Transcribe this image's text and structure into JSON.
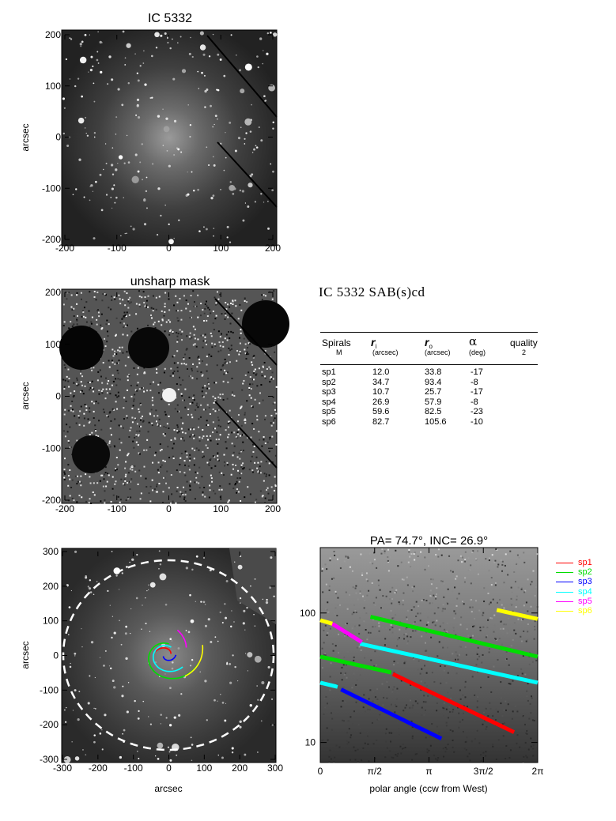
{
  "panels": {
    "top": {
      "title": "IC 5332",
      "ylabel": "arcsec",
      "xticks": [
        "-200",
        "-100",
        "0",
        "100",
        "200"
      ],
      "yticks": [
        "200",
        "100",
        "0",
        "-100",
        "-200"
      ]
    },
    "middle": {
      "title": "unsharp mask",
      "ylabel": "arcsec",
      "xticks": [
        "-200",
        "-100",
        "0",
        "100",
        "200"
      ],
      "yticks": [
        "200",
        "100",
        "0",
        "-100",
        "-200"
      ]
    },
    "bottom_left": {
      "xlabel": "arcsec",
      "ylabel": "arcsec",
      "xticks": [
        "-300",
        "-200",
        "-100",
        "0",
        "100",
        "200",
        "300"
      ],
      "yticks": [
        "300",
        "200",
        "100",
        "0",
        "-100",
        "-200",
        "-300"
      ]
    },
    "bottom_right": {
      "title": "PA= 74.7°, INC= 26.9°",
      "xlabel": "polar angle (ccw from West)",
      "xticks": [
        "0",
        "π/2",
        "π",
        "3π/2",
        "2π"
      ],
      "yticks": [
        "100",
        "10"
      ]
    }
  },
  "galaxy_title": "IC 5332  SAB(s)cd",
  "table": {
    "headers": {
      "spirals": "Spirals",
      "spirals_sub": "M",
      "ri": "r",
      "ri_sub": "i",
      "ri_unit": "(arcsec)",
      "ro": "r",
      "ro_sub": "o",
      "ro_unit": "(arcsec)",
      "alpha": "α",
      "alpha_unit": "(deg)",
      "quality": "quality",
      "quality_val": "2"
    },
    "rows": [
      {
        "name": "sp1",
        "ri": "12.0",
        "ro": "33.8",
        "alpha": "-17"
      },
      {
        "name": "sp2",
        "ri": "34.7",
        "ro": "93.4",
        "alpha": "-8"
      },
      {
        "name": "sp3",
        "ri": "10.7",
        "ro": "25.7",
        "alpha": "-17"
      },
      {
        "name": "sp4",
        "ri": "26.9",
        "ro": "57.9",
        "alpha": "-8"
      },
      {
        "name": "sp5",
        "ri": "59.6",
        "ro": "82.5",
        "alpha": "-23"
      },
      {
        "name": "sp6",
        "ri": "82.7",
        "ro": "105.6",
        "alpha": "-10"
      }
    ]
  },
  "legend": [
    {
      "label": "sp1",
      "color": "#ff0000"
    },
    {
      "label": "sp2",
      "color": "#00dd00"
    },
    {
      "label": "sp3",
      "color": "#0000ff"
    },
    {
      "label": "sp4",
      "color": "#00ffff"
    },
    {
      "label": "sp5",
      "color": "#ff00ff"
    },
    {
      "label": "sp6",
      "color": "#ffff00"
    }
  ],
  "chart_data": {
    "type": "line",
    "x_range": [
      0,
      6.2832
    ],
    "y_scale": "log",
    "y_range": [
      7,
      320
    ],
    "series": [
      {
        "name": "sp1",
        "color": "#ff0000",
        "x": [
          2.1,
          5.6
        ],
        "y": [
          33.8,
          12.0
        ]
      },
      {
        "name": "sp2",
        "color": "#00dd00",
        "x": [
          0.0,
          2.05
        ],
        "y": [
          46,
          34.7
        ]
      },
      {
        "name": "sp2",
        "color": "#00dd00",
        "x": [
          1.45,
          6.28
        ],
        "y": [
          93.4,
          46
        ]
      },
      {
        "name": "sp3",
        "color": "#0000ff",
        "x": [
          0.6,
          3.5
        ],
        "y": [
          25.7,
          10.7
        ]
      },
      {
        "name": "sp4",
        "color": "#00ffff",
        "x": [
          0.0,
          0.5
        ],
        "y": [
          29,
          26.9
        ]
      },
      {
        "name": "sp4",
        "color": "#00ffff",
        "x": [
          1.15,
          6.28
        ],
        "y": [
          57.9,
          29
        ]
      },
      {
        "name": "sp5",
        "color": "#ff00ff",
        "x": [
          0.35,
          1.2
        ],
        "y": [
          82.5,
          59.6
        ]
      },
      {
        "name": "sp6",
        "color": "#ffff00",
        "x": [
          5.1,
          6.28
        ],
        "y": [
          105.6,
          90
        ]
      },
      {
        "name": "sp6",
        "color": "#ffff00",
        "x": [
          0.0,
          0.35
        ],
        "y": [
          88,
          82.7
        ]
      }
    ]
  }
}
